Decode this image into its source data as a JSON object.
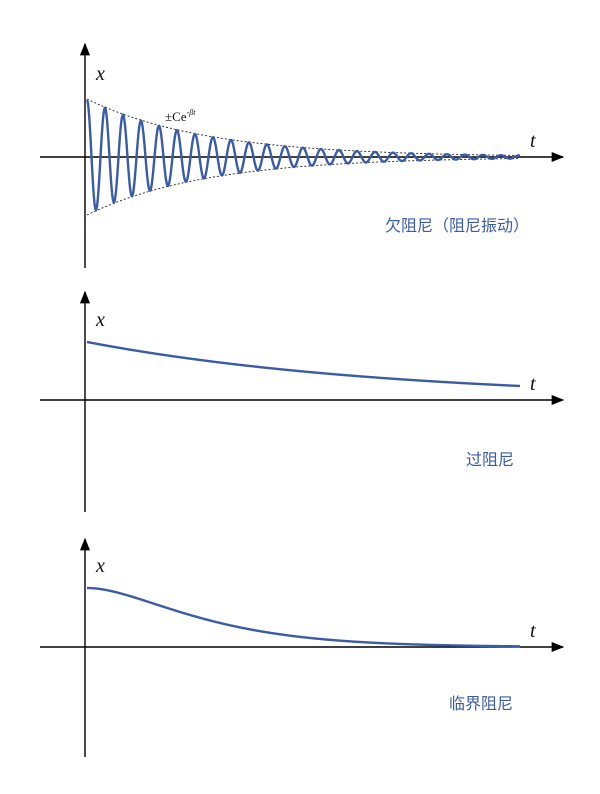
{
  "panels": [
    {
      "x_label": "x",
      "t_label": "t",
      "envelope_label": "±Ce",
      "envelope_exponent": "-βt",
      "caption": "欠阻尼（阻尼振动）"
    },
    {
      "x_label": "x",
      "t_label": "t",
      "caption": "过阻尼"
    },
    {
      "x_label": "x",
      "t_label": "t",
      "caption": "临界阻尼"
    }
  ]
}
